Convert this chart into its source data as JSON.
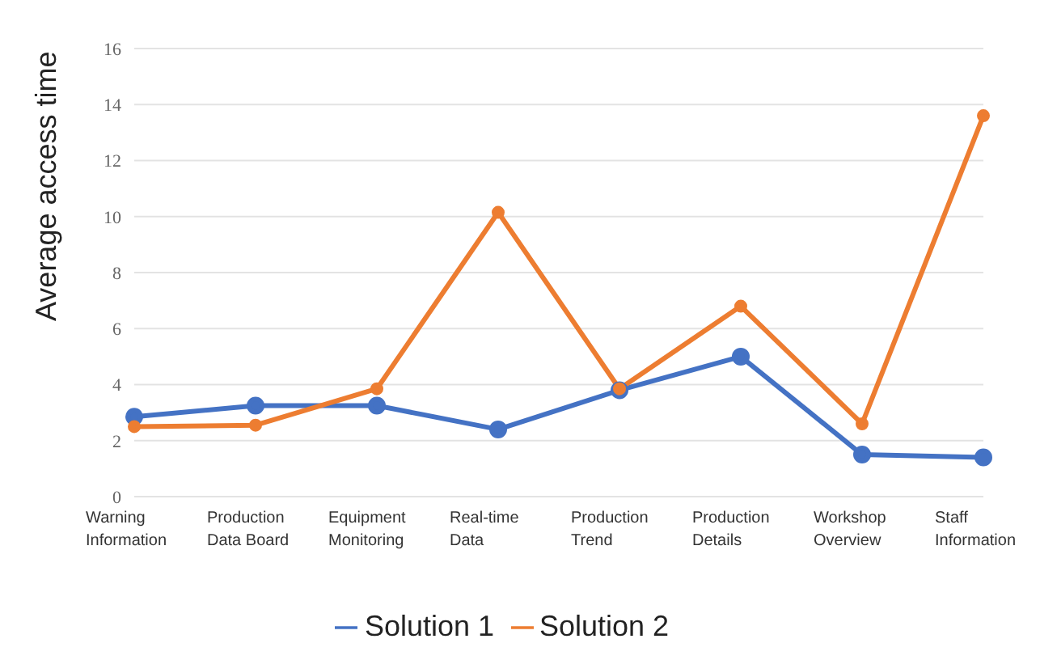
{
  "chart_data": {
    "type": "line",
    "ylabel": "Average access time",
    "categories": [
      "Warning Information",
      "Production Data Board",
      "Equipment Monitoring",
      "Real-time Data",
      "Production Trend",
      "Production Details",
      "Workshop Overview",
      "Staff Information"
    ],
    "series": [
      {
        "name": "Solution 1",
        "color": "#4472c4",
        "values": [
          2.85,
          3.25,
          3.25,
          2.4,
          3.8,
          5.0,
          1.5,
          1.4
        ]
      },
      {
        "name": "Solution 2",
        "color": "#ed7d31",
        "values": [
          2.5,
          2.55,
          3.85,
          10.15,
          3.85,
          6.8,
          2.6,
          13.6
        ]
      }
    ],
    "ylim": [
      0,
      16
    ],
    "yticks": [
      0,
      2,
      4,
      6,
      8,
      10,
      12,
      14,
      16
    ],
    "grid": "y",
    "legend": "bottom",
    "marker": "circle"
  }
}
